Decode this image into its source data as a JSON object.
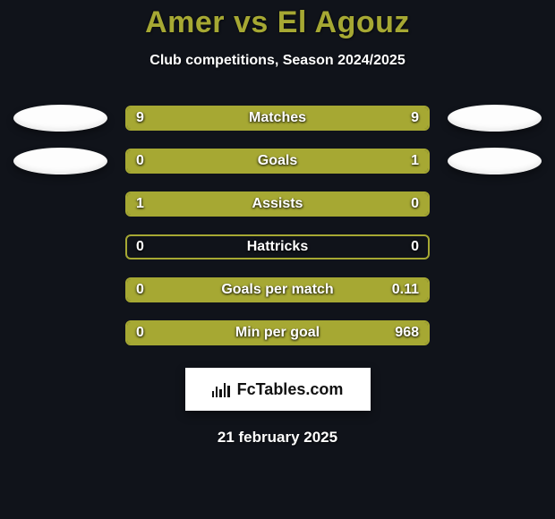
{
  "background_color": "#10131a",
  "title": {
    "text": "Amer vs El Agouz",
    "color": "#a6a833"
  },
  "subtitle": "Club competitions, Season 2024/2025",
  "accent_color": "#a6a833",
  "bar_border_color": "#a6a833",
  "ellipse_color": "#fdfdfd",
  "rows": [
    {
      "label": "Matches",
      "left_val": "9",
      "right_val": "9",
      "left_pct": 50,
      "right_pct": 50,
      "show_left_ellipse": true,
      "show_right_ellipse": true
    },
    {
      "label": "Goals",
      "left_val": "0",
      "right_val": "1",
      "left_pct": 0,
      "right_pct": 100,
      "show_left_ellipse": true,
      "show_right_ellipse": true
    },
    {
      "label": "Assists",
      "left_val": "1",
      "right_val": "0",
      "left_pct": 100,
      "right_pct": 0,
      "show_left_ellipse": false,
      "show_right_ellipse": false
    },
    {
      "label": "Hattricks",
      "left_val": "0",
      "right_val": "0",
      "left_pct": 0,
      "right_pct": 0,
      "show_left_ellipse": false,
      "show_right_ellipse": false
    },
    {
      "label": "Goals per match",
      "left_val": "0",
      "right_val": "0.11",
      "left_pct": 0,
      "right_pct": 100,
      "show_left_ellipse": false,
      "show_right_ellipse": false
    },
    {
      "label": "Min per goal",
      "left_val": "0",
      "right_val": "968",
      "left_pct": 0,
      "right_pct": 100,
      "show_left_ellipse": false,
      "show_right_ellipse": false
    }
  ],
  "badge": {
    "text": "FcTables.com"
  },
  "date": "21 february 2025"
}
